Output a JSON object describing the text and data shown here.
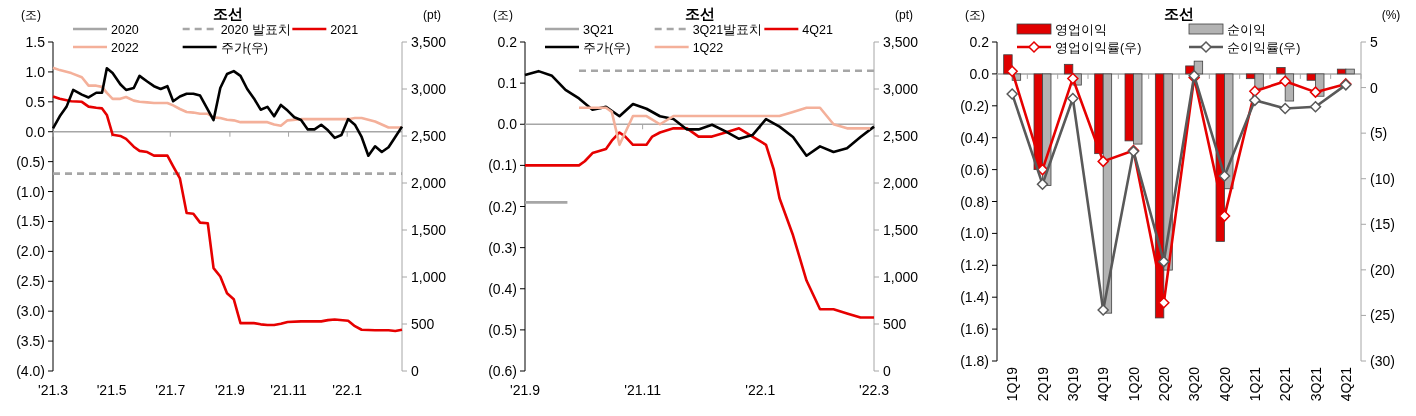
{
  "chart_data": [
    {
      "type": "line",
      "title": "조선",
      "ylabel": "(조)",
      "y2label": "(pt)",
      "legend": "top",
      "x": [
        "2021-03-01",
        "2021-03-08",
        "2021-03-20",
        "2021-03-31",
        "2021-04-07",
        "2021-04-15",
        "2021-04-21",
        "2021-04-26",
        "2021-05-02",
        "2021-05-10",
        "2021-05-16",
        "2021-05-24",
        "2021-05-30",
        "2021-06-07",
        "2021-06-14",
        "2021-06-28",
        "2021-07-04",
        "2021-07-11",
        "2021-07-18",
        "2021-07-25",
        "2021-08-01",
        "2021-08-09",
        "2021-08-15",
        "2021-08-22",
        "2021-08-29",
        "2021-09-05",
        "2021-09-12",
        "2021-09-26",
        "2021-10-03",
        "2021-10-10",
        "2021-10-17",
        "2021-10-24",
        "2021-10-31",
        "2021-11-14",
        "2021-12-05",
        "2021-12-12",
        "2021-12-19",
        "2022-01-02",
        "2022-01-09",
        "2022-01-16",
        "2022-01-30",
        "2022-02-13",
        "2022-02-20",
        "2022-02-27"
      ],
      "xlim": [
        "2021-03-01",
        "2022-02-27"
      ],
      "xticks": [
        {
          "value": "2021-03-01",
          "label": "'21.3"
        },
        {
          "value": "2021-05-01",
          "label": "'21.5"
        },
        {
          "value": "2021-07-01",
          "label": "'21.7"
        },
        {
          "value": "2021-09-01",
          "label": "'21.9"
        },
        {
          "value": "2021-11-01",
          "label": "'21.11"
        },
        {
          "value": "2022-01-01",
          "label": "'22.1"
        }
      ],
      "ylim": [
        -4.0,
        1.5
      ],
      "yticks": [
        {
          "value": 1.5,
          "label": "1.5"
        },
        {
          "value": 1.0,
          "label": "1.0"
        },
        {
          "value": 0.5,
          "label": "0.5"
        },
        {
          "value": 0,
          "label": "0.0"
        },
        {
          "value": -0.5,
          "label": "(0.5)"
        },
        {
          "value": -1.0,
          "label": "(1.0)"
        },
        {
          "value": -1.5,
          "label": "(1.5)"
        },
        {
          "value": -2.0,
          "label": "(2.0)"
        },
        {
          "value": -2.5,
          "label": "(2.5)"
        },
        {
          "value": -3.0,
          "label": "(3.0)"
        },
        {
          "value": -3.5,
          "label": "(3.5)"
        },
        {
          "value": -4.0,
          "label": "(4.0)"
        }
      ],
      "y2lim": [
        0,
        3500
      ],
      "y2ticks": [
        {
          "value": 3500,
          "label": "3,500"
        },
        {
          "value": 3000,
          "label": "3,000"
        },
        {
          "value": 2500,
          "label": "2,500"
        },
        {
          "value": 2000,
          "label": "2,000"
        },
        {
          "value": 1500,
          "label": "1,500"
        },
        {
          "value": 1000,
          "label": "1,000"
        },
        500,
        0
      ],
      "series": [
        {
          "name": "2020",
          "color": "#a6a6a6",
          "values": [
            null,
            null,
            null,
            null,
            null,
            null,
            null,
            null,
            null,
            null,
            null,
            null,
            null,
            null,
            null,
            null,
            null,
            null,
            null,
            null,
            null,
            null,
            null,
            null,
            null,
            null,
            null,
            null,
            null,
            null,
            null,
            null,
            null,
            null,
            null,
            null,
            null,
            null,
            null,
            null,
            null,
            null,
            null,
            null
          ]
        },
        {
          "name": "2020 발표치",
          "color": "#a6a6a6",
          "line_style": "dashed",
          "x": [
            "2021-03-01",
            "2022-02-27"
          ],
          "values": [
            -0.7,
            -0.7
          ]
        },
        {
          "name": "2021",
          "color": "#e60000",
          "values": [
            0.59,
            0.55,
            0.51,
            0.5,
            0.42,
            0.4,
            0.39,
            0.28,
            -0.05,
            -0.07,
            -0.12,
            -0.25,
            -0.32,
            -0.34,
            -0.4,
            -0.4,
            -0.58,
            -0.78,
            -1.36,
            -1.37,
            -1.52,
            -1.53,
            -2.28,
            -2.42,
            -2.7,
            -2.8,
            -3.2,
            -3.2,
            -3.22,
            -3.23,
            -3.23,
            -3.21,
            -3.18,
            -3.17,
            -3.17,
            -3.15,
            -3.14,
            -3.16,
            -3.25,
            -3.31,
            -3.32,
            -3.32,
            -3.33,
            -3.31
          ]
        },
        {
          "name": "2022",
          "color": "#f4b09a",
          "values": [
            1.07,
            1.03,
            0.98,
            0.91,
            0.77,
            0.77,
            0.75,
            0.65,
            0.55,
            0.55,
            0.58,
            0.52,
            0.5,
            0.49,
            0.48,
            0.48,
            0.44,
            0.38,
            0.33,
            0.32,
            0.3,
            0.3,
            0.24,
            0.23,
            0.2,
            0.19,
            0.16,
            0.16,
            0.16,
            0.16,
            0.12,
            0.1,
            0.19,
            0.21,
            0.21,
            0.21,
            0.21,
            0.21,
            0.23,
            0.23,
            0.17,
            0.07,
            0.07,
            0.07
          ]
        },
        {
          "name": "주가(우)",
          "color": "#000000",
          "axis": "y2",
          "x": [
            "2021-03-01",
            "2021-03-08",
            "2021-03-15",
            "2021-03-22",
            "2021-03-31",
            "2021-04-07",
            "2021-04-15",
            "2021-04-21",
            "2021-04-26",
            "2021-05-02",
            "2021-05-10",
            "2021-05-16",
            "2021-05-24",
            "2021-05-30",
            "2021-06-07",
            "2021-06-14",
            "2021-06-21",
            "2021-06-28",
            "2021-07-04",
            "2021-07-11",
            "2021-07-18",
            "2021-07-25",
            "2021-08-01",
            "2021-08-15",
            "2021-08-22",
            "2021-08-29",
            "2021-09-05",
            "2021-09-12",
            "2021-09-19",
            "2021-09-26",
            "2021-10-03",
            "2021-10-10",
            "2021-10-17",
            "2021-10-24",
            "2021-10-31",
            "2021-11-07",
            "2021-11-14",
            "2021-11-21",
            "2021-11-28",
            "2021-12-05",
            "2021-12-12",
            "2021-12-19",
            "2021-12-26",
            "2022-01-02",
            "2022-01-09",
            "2022-01-16",
            "2022-01-23",
            "2022-01-30",
            "2022-02-06",
            "2022-02-13",
            "2022-02-20",
            "2022-02-27"
          ],
          "values": [
            2580,
            2710,
            2810,
            2990,
            2940,
            2910,
            2960,
            2960,
            3220,
            3170,
            3050,
            2990,
            3010,
            3140,
            3080,
            3030,
            3000,
            3030,
            2870,
            2920,
            2950,
            2950,
            2930,
            2670,
            3010,
            3160,
            3190,
            3140,
            3000,
            2900,
            2780,
            2810,
            2710,
            2830,
            2770,
            2700,
            2670,
            2570,
            2570,
            2620,
            2560,
            2480,
            2510,
            2680,
            2620,
            2490,
            2290,
            2390,
            2330,
            2380,
            2490,
            2600
          ]
        }
      ]
    },
    {
      "type": "line",
      "title": "조선",
      "ylabel": "(조)",
      "y2label": "(pt)",
      "legend": "top",
      "xlim": [
        "2021-09-01",
        "2022-03-01"
      ],
      "xticks": [
        {
          "value": "2021-09-01",
          "label": "'21.9"
        },
        {
          "value": "2021-11-01",
          "label": "'21.11"
        },
        {
          "value": "2022-01-01",
          "label": "'22.1"
        },
        {
          "value": "2022-03-01",
          "label": "'22.3"
        }
      ],
      "ylim": [
        -0.6,
        0.2
      ],
      "yticks": [
        {
          "value": 0.2,
          "label": "0.2"
        },
        {
          "value": 0.1,
          "label": "0.1"
        },
        {
          "value": 0,
          "label": "0.0"
        },
        {
          "value": -0.1,
          "label": "(0.1)"
        },
        {
          "value": -0.2,
          "label": "(0.2)"
        },
        {
          "value": -0.3,
          "label": "(0.3)"
        },
        {
          "value": -0.4,
          "label": "(0.4)"
        },
        {
          "value": -0.5,
          "label": "(0.5)"
        },
        {
          "value": -0.6,
          "label": "(0.6)"
        }
      ],
      "y2lim": [
        0,
        3500
      ],
      "y2ticks": [
        {
          "value": 3500,
          "label": "3,500"
        },
        {
          "value": 3000,
          "label": "3,000"
        },
        {
          "value": 2500,
          "label": "2,500"
        },
        {
          "value": 2000,
          "label": "2,000"
        },
        {
          "value": 1500,
          "label": "1,500"
        },
        {
          "value": 1000,
          "label": "1,000"
        },
        500,
        0
      ],
      "series": [
        {
          "name": "3Q21",
          "color": "#a6a6a6",
          "x": [
            "2021-09-01",
            "2021-09-23"
          ],
          "values": [
            -0.19,
            -0.19
          ]
        },
        {
          "name": "3Q21발표치",
          "color": "#a6a6a6",
          "line_style": "dashed",
          "x": [
            "2021-09-29",
            "2022-03-01"
          ],
          "values": [
            0.13,
            0.13
          ]
        },
        {
          "name": "4Q21",
          "color": "#e60000",
          "x": [
            "2021-09-01",
            "2021-09-29",
            "2021-10-02",
            "2021-10-06",
            "2021-10-13",
            "2021-10-16",
            "2021-10-20",
            "2021-10-23",
            "2021-10-27",
            "2021-11-03",
            "2021-11-06",
            "2021-11-10",
            "2021-11-17",
            "2021-11-24",
            "2021-11-30",
            "2021-12-07",
            "2021-12-14",
            "2021-12-21",
            "2021-12-28",
            "2022-01-04",
            "2022-01-08",
            "2022-01-11",
            "2022-01-18",
            "2022-01-25",
            "2022-02-01",
            "2022-02-08",
            "2022-02-15",
            "2022-02-22",
            "2022-03-01"
          ],
          "values": [
            -0.1,
            -0.1,
            -0.09,
            -0.07,
            -0.06,
            -0.04,
            -0.02,
            -0.03,
            -0.05,
            -0.05,
            -0.03,
            -0.02,
            -0.01,
            -0.01,
            -0.03,
            -0.03,
            -0.02,
            -0.01,
            -0.03,
            -0.05,
            -0.11,
            -0.18,
            -0.27,
            -0.38,
            -0.45,
            -0.45,
            -0.46,
            -0.47,
            -0.47
          ]
        },
        {
          "name": "주가(우)",
          "color": "#000000",
          "axis": "y2",
          "x": [
            "2021-09-01",
            "2021-09-08",
            "2021-09-15",
            "2021-09-22",
            "2021-09-29",
            "2021-10-06",
            "2021-10-13",
            "2021-10-20",
            "2021-10-27",
            "2021-11-03",
            "2021-11-10",
            "2021-11-17",
            "2021-11-24",
            "2021-11-30",
            "2021-12-07",
            "2021-12-14",
            "2021-12-21",
            "2021-12-28",
            "2022-01-04",
            "2022-01-11",
            "2022-01-18",
            "2022-01-25",
            "2022-02-01",
            "2022-02-08",
            "2022-02-15",
            "2022-02-22",
            "2022-03-01"
          ],
          "values": [
            3150,
            3190,
            3140,
            2990,
            2900,
            2780,
            2810,
            2710,
            2840,
            2790,
            2710,
            2680,
            2570,
            2570,
            2620,
            2550,
            2470,
            2510,
            2680,
            2600,
            2490,
            2290,
            2390,
            2330,
            2370,
            2490,
            2600
          ]
        },
        {
          "name": "1Q22",
          "color": "#f4b09a",
          "x": [
            "2021-09-29",
            "2021-10-13",
            "2021-10-16",
            "2021-10-20",
            "2021-10-23",
            "2021-10-27",
            "2021-11-03",
            "2021-11-10",
            "2021-11-17",
            "2021-12-21",
            "2022-01-04",
            "2022-01-11",
            "2022-01-18",
            "2022-01-25",
            "2022-02-01",
            "2022-02-08",
            "2022-02-15",
            "2022-02-22",
            "2022-02-27"
          ],
          "values": [
            0.04,
            0.04,
            0.03,
            -0.05,
            -0.02,
            0.02,
            0.02,
            0.0,
            0.02,
            0.02,
            0.02,
            0.02,
            0.03,
            0.04,
            0.04,
            0.0,
            -0.01,
            -0.01,
            -0.01
          ]
        }
      ]
    },
    {
      "type": "bar",
      "title": "조선",
      "ylabel": "(조)",
      "y2label": "(%)",
      "legend": "top",
      "marker": "diamond",
      "categories": [
        "1Q19",
        "2Q19",
        "3Q19",
        "4Q19",
        "1Q20",
        "2Q20",
        "3Q20",
        "4Q20",
        "1Q21",
        "2Q21",
        "3Q21",
        "4Q21"
      ],
      "ylim": [
        -1.8,
        0.2
      ],
      "yticks": [
        {
          "value": 0.2,
          "label": "0.2"
        },
        {
          "value": 0,
          "label": "0.0"
        },
        {
          "value": -0.2,
          "label": "(0.2)"
        },
        {
          "value": -0.4,
          "label": "(0.4)"
        },
        {
          "value": -0.6,
          "label": "(0.6)"
        },
        {
          "value": -0.8,
          "label": "(0.8)"
        },
        {
          "value": -1.0,
          "label": "(1.0)"
        },
        {
          "value": -1.2,
          "label": "(1.2)"
        },
        {
          "value": -1.4,
          "label": "(1.4)"
        },
        {
          "value": -1.6,
          "label": "(1.6)"
        },
        {
          "value": -1.8,
          "label": "(1.8)"
        }
      ],
      "y2lim": [
        -30,
        5
      ],
      "y2ticks": [
        5,
        0,
        {
          "value": -5,
          "label": "(5)"
        },
        {
          "value": -10,
          "label": "(10)"
        },
        {
          "value": -15,
          "label": "(15)"
        },
        {
          "value": -20,
          "label": "(20)"
        },
        {
          "value": -25,
          "label": "(25)"
        },
        {
          "value": -30,
          "label": "(30)"
        }
      ],
      "series": [
        {
          "name": "영업이익",
          "color": "#e00000",
          "values": [
            0.12,
            -0.6,
            0.06,
            -0.5,
            -0.42,
            -1.53,
            0.05,
            -1.05,
            -0.03,
            0.04,
            -0.04,
            0.03
          ]
        },
        {
          "name": "순이익",
          "color": "#b3b3b3",
          "values": [
            -0.04,
            -0.7,
            -0.07,
            -1.5,
            -0.44,
            -1.23,
            0.08,
            -0.72,
            -0.09,
            -0.17,
            -0.14,
            0.03
          ]
        },
        {
          "name": "영업이익률(우)",
          "type": "line",
          "axis": "y2",
          "color": "#e60000",
          "values": [
            1.8,
            -9.0,
            1.0,
            -8.1,
            -6.9,
            -23.6,
            1.1,
            -14.1,
            -0.4,
            0.7,
            -0.5,
            0.4
          ]
        },
        {
          "name": "순이익률(우)",
          "type": "line",
          "axis": "y2",
          "color": "#595959",
          "values": [
            -0.7,
            -10.6,
            -1.2,
            -24.4,
            -7.0,
            -19.1,
            1.3,
            -9.7,
            -1.4,
            -2.3,
            -2.1,
            0.3
          ]
        }
      ]
    }
  ]
}
